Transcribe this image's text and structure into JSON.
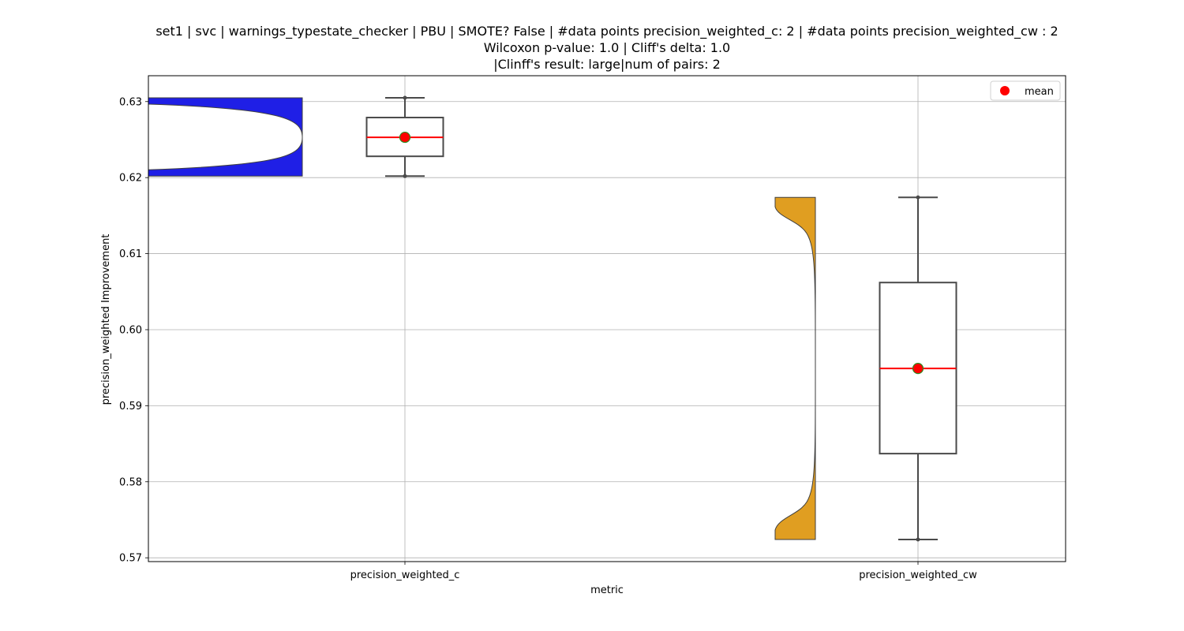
{
  "chart_data": {
    "type": "violin+box",
    "title_lines": [
      "set1 | svc | warnings_typestate_checker | PBU | SMOTE? False | #data points precision_weighted_c: 2 | #data points precision_weighted_cw : 2",
      "Wilcoxon p-value: 1.0 | Cliff's delta: 1.0",
      "|Clinff's result: large|num of pairs: 2"
    ],
    "xlabel": "metric",
    "ylabel": "precision_weighted Improvement",
    "categories": [
      "precision_weighted_c",
      "precision_weighted_cw"
    ],
    "ylim": [
      0.5695,
      0.6334
    ],
    "yticks": [
      0.57,
      0.58,
      0.59,
      0.6,
      0.61,
      0.62,
      0.63
    ],
    "ytick_labels": [
      "0.57",
      "0.58",
      "0.59",
      "0.60",
      "0.61",
      "0.62",
      "0.63"
    ],
    "grid": true,
    "legend": {
      "position": "top-right",
      "entries": [
        {
          "label": "mean",
          "color": "#ff0000",
          "marker": "circle"
        }
      ]
    },
    "series": [
      {
        "category": "precision_weighted_c",
        "violin_color": "#1f1fe6",
        "violin_side": "left",
        "violin_range": [
          0.6202,
          0.6305
        ],
        "violin_mode": 0.6253,
        "box": {
          "whisker_low": 0.6202,
          "q1": 0.6228,
          "median": 0.6253,
          "q3": 0.6279,
          "whisker_high": 0.6305
        },
        "mean": 0.6253,
        "points": [
          0.6202,
          0.6305
        ]
      },
      {
        "category": "precision_weighted_cw",
        "violin_color": "#e09e21",
        "violin_side": "left",
        "violin_range": [
          0.5724,
          0.6174
        ],
        "violin_modes": [
          0.5765,
          0.6135
        ],
        "box": {
          "whisker_low": 0.5724,
          "q1": 0.5837,
          "median": 0.5949,
          "q3": 0.6062,
          "whisker_high": 0.6174
        },
        "mean": 0.5949,
        "points": [
          0.5724,
          0.6174
        ]
      }
    ]
  }
}
